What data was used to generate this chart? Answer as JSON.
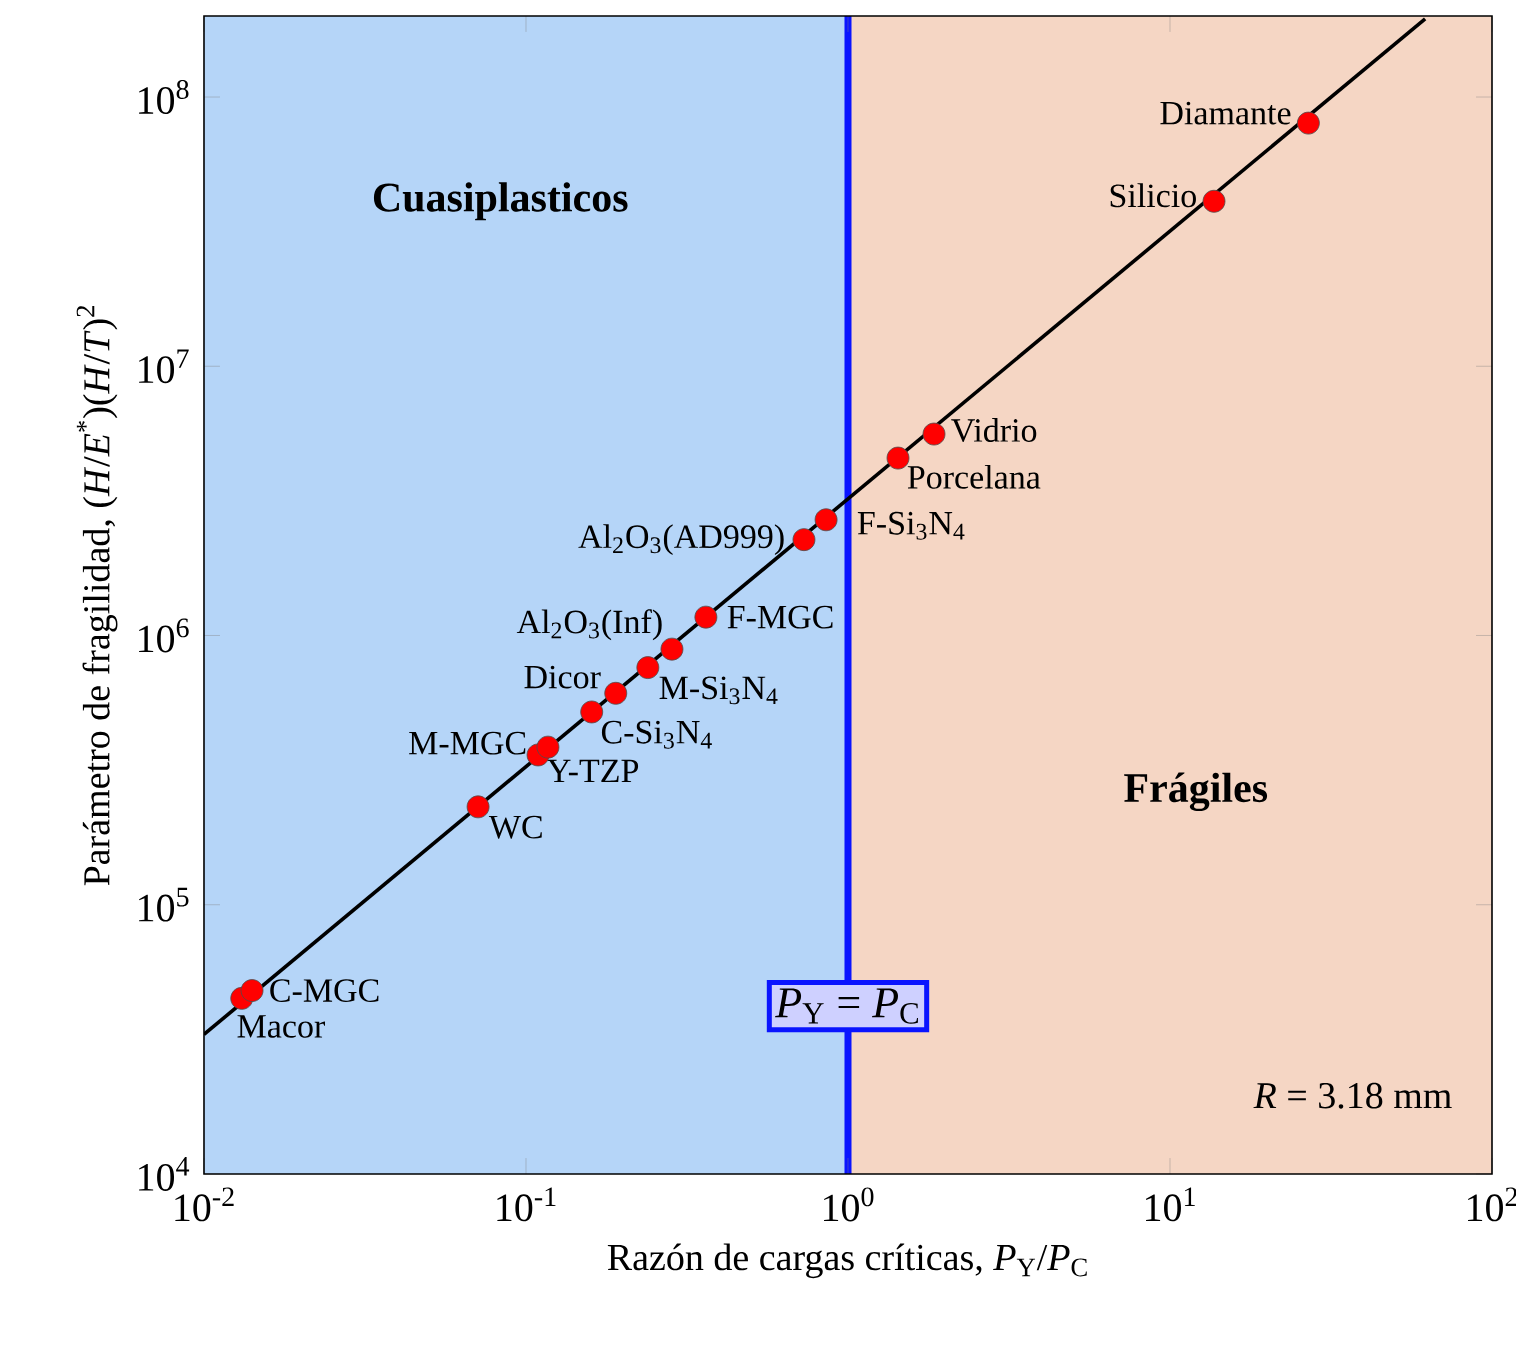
{
  "chart_data": {
    "type": "scatter",
    "log": "xy",
    "xlabel": "Razón de cargas críticas, *P*$_{Y}$/*P*$_{C}$",
    "ylabel": "Parámetro de fragilidad, (*H*/*E*$^{*}$)(*H*/*T*)$^{2}$",
    "xlim": [
      0.01,
      100
    ],
    "ylim": [
      10000,
      200000000
    ],
    "xticks": [
      {
        "value": 0.01,
        "label": "10$^{-2}$"
      },
      {
        "value": 0.1,
        "label": "10$^{-1}$"
      },
      {
        "value": 1,
        "label": "10$^{0}$"
      },
      {
        "value": 10,
        "label": "10$^{1}$"
      },
      {
        "value": 100,
        "label": "10$^{2}$"
      }
    ],
    "yticks": [
      {
        "value": 10000,
        "label": "10$^{4}$"
      },
      {
        "value": 100000,
        "label": "10$^{5}$"
      },
      {
        "value": 1000000,
        "label": "10$^{6}$"
      },
      {
        "value": 10000000,
        "label": "10$^{7}$"
      },
      {
        "value": 100000000,
        "label": "10$^{8}$"
      }
    ],
    "series": [
      {
        "type": "line",
        "color": "#000000",
        "marker": "none",
        "x": [
          0.01,
          62
        ],
        "values": [
          33000,
          195000000
        ]
      },
      {
        "color": "#ff0000",
        "marker": "circle",
        "x": [
          0.0131,
          0.0141,
          0.071,
          0.109,
          0.117,
          0.16,
          0.19,
          0.239,
          0.284,
          0.362,
          0.73,
          0.855,
          1.43,
          1.85,
          13.7,
          26.9
        ],
        "values": [
          44900,
          48000,
          231000,
          360000,
          385000,
          520000,
          610000,
          760000,
          890000,
          1170000,
          2270000,
          2690000,
          4560000,
          5600000,
          41000000,
          80000000
        ]
      }
    ],
    "bands": [
      {
        "axis": "x",
        "from": 0.01,
        "to": 1,
        "label": "Cuasiplasticos",
        "color": "#b5d5f8"
      },
      {
        "axis": "x",
        "from": 1,
        "to": 100,
        "label": "Frágiles",
        "color": "#f5d6c4"
      }
    ],
    "ref_lines": [
      {
        "axis": "x",
        "value": 1,
        "label": "*P*$_{Y}$ = *P*$_{C}$",
        "color": "#0a14ff"
      }
    ],
    "annotations": [
      {
        "text": "Diamante",
        "x": 26.9,
        "y": 80000000
      },
      {
        "text": "Silicio",
        "x": 13.7,
        "y": 41000000
      },
      {
        "text": "Vidrio",
        "x": 1.85,
        "y": 5600000
      },
      {
        "text": "Porcelana",
        "x": 1.43,
        "y": 4560000
      },
      {
        "text": "F-Si$_{3}$N$_{4}$",
        "x": 0.855,
        "y": 2690000
      },
      {
        "text": "Al$_{2}$O$_{3}$(AD999)",
        "x": 0.73,
        "y": 2270000
      },
      {
        "text": "F-MGC",
        "x": 0.362,
        "y": 1170000
      },
      {
        "text": "Al$_{2}$O$_{3}$(Inf)",
        "x": 0.284,
        "y": 890000
      },
      {
        "text": "M-Si$_{3}$N$_{4}$",
        "x": 0.239,
        "y": 760000
      },
      {
        "text": "Dicor",
        "x": 0.19,
        "y": 610000
      },
      {
        "text": "C-Si$_{3}$N$_{4}$",
        "x": 0.16,
        "y": 520000
      },
      {
        "text": "M-MGC",
        "x": 0.117,
        "y": 385000
      },
      {
        "text": "Y-TZP",
        "x": 0.109,
        "y": 360000
      },
      {
        "text": "WC",
        "x": 0.071,
        "y": 231000
      },
      {
        "text": "C-MGC",
        "x": 0.0141,
        "y": 48000
      },
      {
        "text": "Macor",
        "x": 0.0131,
        "y": 44900
      },
      "*R* = 3.18 mm"
    ]
  }
}
